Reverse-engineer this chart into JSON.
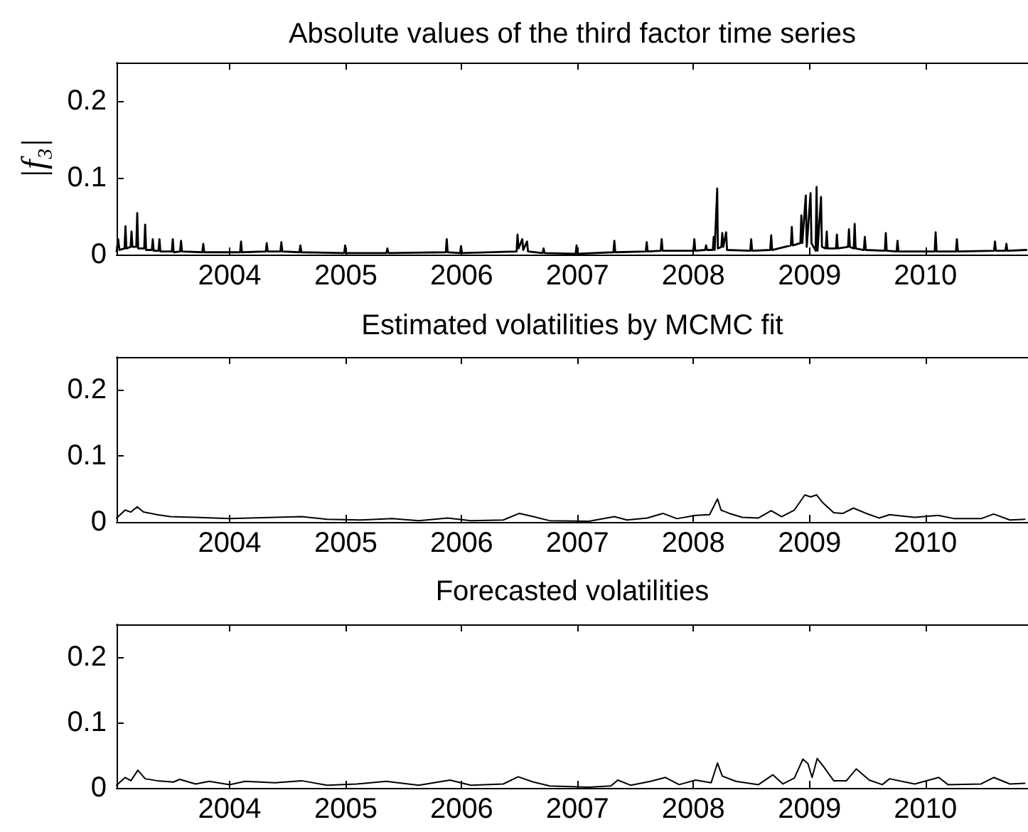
{
  "chart_data": [
    {
      "type": "line",
      "title": "Absolute values of the third factor time series",
      "ylabel": "|f₃|",
      "color": "#000000",
      "x": [
        "2003-01-10",
        "2003-01-15",
        "2003-01-19",
        "2003-02-04",
        "2003-02-07",
        "2003-02-10",
        "2003-02-23",
        "2003-02-26",
        "2003-03-01",
        "2003-03-13",
        "2003-03-16",
        "2003-03-19",
        "2003-04-07",
        "2003-04-10",
        "2003-04-13",
        "2003-05-01",
        "2003-05-04",
        "2003-05-07",
        "2003-05-22",
        "2003-05-25",
        "2003-05-28",
        "2003-07-03",
        "2003-07-06",
        "2003-07-09",
        "2003-07-29",
        "2003-08-01",
        "2003-08-04",
        "2003-10-07",
        "2003-10-10",
        "2003-10-13",
        "2004-02-03",
        "2004-02-06",
        "2004-02-09",
        "2004-04-24",
        "2004-04-27",
        "2004-04-30",
        "2004-06-09",
        "2004-06-12",
        "2004-06-15",
        "2004-08-08",
        "2004-08-11",
        "2004-08-14",
        "2004-12-27",
        "2004-12-30",
        "2005-01-02",
        "2005-05-09",
        "2005-05-12",
        "2005-05-15",
        "2005-11-12",
        "2005-11-15",
        "2005-11-18",
        "2005-12-27",
        "2005-12-30",
        "2006-01-02",
        "2006-06-23",
        "2006-06-26",
        "2006-06-29",
        "2006-07-11",
        "2006-07-14",
        "2006-07-26",
        "2006-07-29",
        "2006-09-13",
        "2006-09-16",
        "2006-09-19",
        "2006-12-26",
        "2006-12-29",
        "2007-01-01",
        "2007-04-24",
        "2007-04-27",
        "2007-04-30",
        "2007-08-04",
        "2007-08-07",
        "2007-08-10",
        "2007-09-20",
        "2007-09-23",
        "2007-09-26",
        "2008-01-01",
        "2008-01-04",
        "2008-01-07",
        "2008-02-07",
        "2008-02-10",
        "2008-02-13",
        "2008-03-02",
        "2008-03-05",
        "2008-03-08",
        "2008-03-16",
        "2008-03-18",
        "2008-03-29",
        "2008-04-01",
        "2008-04-04",
        "2008-04-13",
        "2008-04-16",
        "2008-06-28",
        "2008-07-01",
        "2008-07-04",
        "2008-08-30",
        "2008-09-02",
        "2008-09-05",
        "2008-11-03",
        "2008-11-06",
        "2008-11-09",
        "2008-12-03",
        "2008-12-06",
        "2008-12-09",
        "2008-12-20",
        "2008-12-23",
        "2009-01-04",
        "2009-01-07",
        "2009-01-20",
        "2009-01-23",
        "2009-01-26",
        "2009-02-06",
        "2009-02-09",
        "2009-02-21",
        "2009-02-24",
        "2009-02-27",
        "2009-03-25",
        "2009-03-28",
        "2009-03-31",
        "2009-05-02",
        "2009-05-05",
        "2009-05-08",
        "2009-05-20",
        "2009-05-23",
        "2009-05-26",
        "2009-06-21",
        "2009-06-24",
        "2009-06-27",
        "2009-08-26",
        "2009-08-29",
        "2009-09-01",
        "2009-10-02",
        "2009-10-05",
        "2009-10-08",
        "2010-01-30",
        "2010-02-02",
        "2010-02-05",
        "2010-04-07",
        "2010-04-10",
        "2010-04-13",
        "2010-08-05",
        "2010-08-08",
        "2010-08-11",
        "2010-09-10",
        "2010-09-13",
        "2010-09-16",
        "2010-11-15"
      ],
      "values": [
        0.004,
        0.02,
        0.006,
        0.008,
        0.037,
        0.008,
        0.01,
        0.03,
        0.01,
        0.01,
        0.054,
        0.008,
        0.008,
        0.039,
        0.006,
        0.006,
        0.02,
        0.005,
        0.005,
        0.02,
        0.004,
        0.004,
        0.02,
        0.003,
        0.004,
        0.018,
        0.004,
        0.003,
        0.014,
        0.003,
        0.003,
        0.017,
        0.003,
        0.004,
        0.015,
        0.004,
        0.004,
        0.016,
        0.004,
        0.003,
        0.012,
        0.003,
        0.002,
        0.012,
        0.002,
        0.002,
        0.008,
        0.002,
        0.003,
        0.02,
        0.003,
        0.002,
        0.011,
        0.002,
        0.004,
        0.026,
        0.008,
        0.02,
        0.006,
        0.017,
        0.004,
        0.002,
        0.008,
        0.002,
        0.001,
        0.012,
        0.001,
        0.003,
        0.018,
        0.003,
        0.004,
        0.016,
        0.004,
        0.005,
        0.02,
        0.005,
        0.005,
        0.02,
        0.005,
        0.006,
        0.012,
        0.006,
        0.006,
        0.023,
        0.006,
        0.086,
        0.008,
        0.01,
        0.028,
        0.01,
        0.029,
        0.006,
        0.005,
        0.02,
        0.005,
        0.006,
        0.025,
        0.006,
        0.012,
        0.036,
        0.012,
        0.015,
        0.051,
        0.015,
        0.077,
        0.01,
        0.08,
        0.015,
        0.005,
        0.088,
        0.005,
        0.075,
        0.01,
        0.008,
        0.03,
        0.008,
        0.008,
        0.026,
        0.008,
        0.01,
        0.033,
        0.01,
        0.008,
        0.04,
        0.008,
        0.006,
        0.023,
        0.006,
        0.005,
        0.028,
        0.005,
        0.004,
        0.018,
        0.004,
        0.004,
        0.029,
        0.004,
        0.004,
        0.02,
        0.004,
        0.005,
        0.017,
        0.005,
        0.005,
        0.014,
        0.005,
        0.006
      ],
      "xlim": [
        "2003-01-10",
        "2010-11-20"
      ],
      "xticks": [
        "2004",
        "2005",
        "2006",
        "2007",
        "2008",
        "2009",
        "2010"
      ],
      "ylim": [
        0,
        0.25
      ],
      "yticks": [
        0,
        0.1,
        0.2
      ]
    },
    {
      "type": "line",
      "title": "Estimated volatilities by MCMC fit",
      "color": "#000000",
      "x": [
        "2003-01-10",
        "2003-02-06",
        "2003-02-24",
        "2003-03-16",
        "2003-04-05",
        "2003-05-18",
        "2003-06-28",
        "2003-09-16",
        "2004-01-01",
        "2004-05-23",
        "2004-08-15",
        "2004-11-03",
        "2005-02-14",
        "2005-05-27",
        "2005-08-19",
        "2005-11-18",
        "2006-01-30",
        "2006-05-12",
        "2006-07-02",
        "2006-08-15",
        "2006-10-05",
        "2007-02-06",
        "2007-04-27",
        "2007-06-06",
        "2007-08-08",
        "2007-09-27",
        "2007-11-10",
        "2008-01-08",
        "2008-02-21",
        "2008-03-17",
        "2008-03-28",
        "2008-04-23",
        "2008-06-03",
        "2008-07-24",
        "2008-09-02",
        "2008-10-05",
        "2008-11-14",
        "2008-12-17",
        "2009-01-04",
        "2009-01-23",
        "2009-02-10",
        "2009-03-18",
        "2009-04-16",
        "2009-05-19",
        "2009-06-28",
        "2009-08-08",
        "2009-09-10",
        "2009-11-28",
        "2010-02-10",
        "2010-04-02",
        "2010-06-25",
        "2010-08-04",
        "2010-09-24",
        "2010-11-10"
      ],
      "values": [
        0.006,
        0.018,
        0.015,
        0.023,
        0.015,
        0.011,
        0.008,
        0.007,
        0.005,
        0.007,
        0.008,
        0.004,
        0.003,
        0.005,
        0.002,
        0.006,
        0.002,
        0.003,
        0.013,
        0.008,
        0.002,
        0.001,
        0.008,
        0.003,
        0.006,
        0.013,
        0.005,
        0.01,
        0.011,
        0.035,
        0.018,
        0.013,
        0.007,
        0.006,
        0.017,
        0.008,
        0.018,
        0.041,
        0.038,
        0.041,
        0.03,
        0.014,
        0.013,
        0.021,
        0.013,
        0.006,
        0.011,
        0.007,
        0.01,
        0.005,
        0.005,
        0.012,
        0.003,
        0.004
      ],
      "xlim": [
        "2003-01-10",
        "2010-11-20"
      ],
      "xticks": [
        "2004",
        "2005",
        "2006",
        "2007",
        "2008",
        "2009",
        "2010"
      ],
      "ylim": [
        0,
        0.25
      ],
      "yticks": [
        0,
        0.1,
        0.2
      ]
    },
    {
      "type": "line",
      "title": "Forecasted volatilities",
      "color": "#000000",
      "x": [
        "2003-01-10",
        "2003-02-06",
        "2003-02-24",
        "2003-03-18",
        "2003-04-10",
        "2003-05-18",
        "2003-07-08",
        "2003-07-28",
        "2003-09-16",
        "2003-10-29",
        "2004-01-01",
        "2004-02-19",
        "2004-05-23",
        "2004-08-15",
        "2004-11-03",
        "2005-02-04",
        "2005-05-08",
        "2005-08-19",
        "2005-11-25",
        "2006-01-30",
        "2006-05-12",
        "2006-06-28",
        "2006-08-15",
        "2006-10-05",
        "2007-02-06",
        "2007-04-16",
        "2007-05-08",
        "2007-06-18",
        "2007-08-19",
        "2007-10-05",
        "2007-11-17",
        "2008-01-08",
        "2008-02-26",
        "2008-03-17",
        "2008-04-01",
        "2008-05-14",
        "2008-07-24",
        "2008-09-07",
        "2008-10-09",
        "2008-11-14",
        "2008-12-11",
        "2008-12-27",
        "2009-01-09",
        "2009-01-25",
        "2009-02-15",
        "2009-03-18",
        "2009-04-27",
        "2009-05-28",
        "2009-07-08",
        "2009-08-18",
        "2009-09-10",
        "2009-11-28",
        "2010-02-12",
        "2010-03-13",
        "2010-06-25",
        "2010-08-04",
        "2010-09-24",
        "2010-11-10"
      ],
      "values": [
        0.004,
        0.016,
        0.011,
        0.027,
        0.014,
        0.011,
        0.009,
        0.013,
        0.006,
        0.01,
        0.005,
        0.01,
        0.008,
        0.011,
        0.004,
        0.006,
        0.01,
        0.004,
        0.012,
        0.004,
        0.006,
        0.017,
        0.009,
        0.003,
        0.001,
        0.003,
        0.012,
        0.004,
        0.01,
        0.016,
        0.005,
        0.012,
        0.008,
        0.038,
        0.018,
        0.01,
        0.005,
        0.02,
        0.006,
        0.015,
        0.044,
        0.037,
        0.016,
        0.045,
        0.032,
        0.011,
        0.011,
        0.029,
        0.012,
        0.005,
        0.014,
        0.006,
        0.016,
        0.005,
        0.006,
        0.016,
        0.006,
        0.007
      ],
      "xlim": [
        "2003-01-10",
        "2010-11-20"
      ],
      "xticks": [
        "2004",
        "2005",
        "2006",
        "2007",
        "2008",
        "2009",
        "2010"
      ],
      "ylim": [
        0,
        0.25
      ],
      "yticks": [
        0,
        0.1,
        0.2
      ]
    }
  ]
}
